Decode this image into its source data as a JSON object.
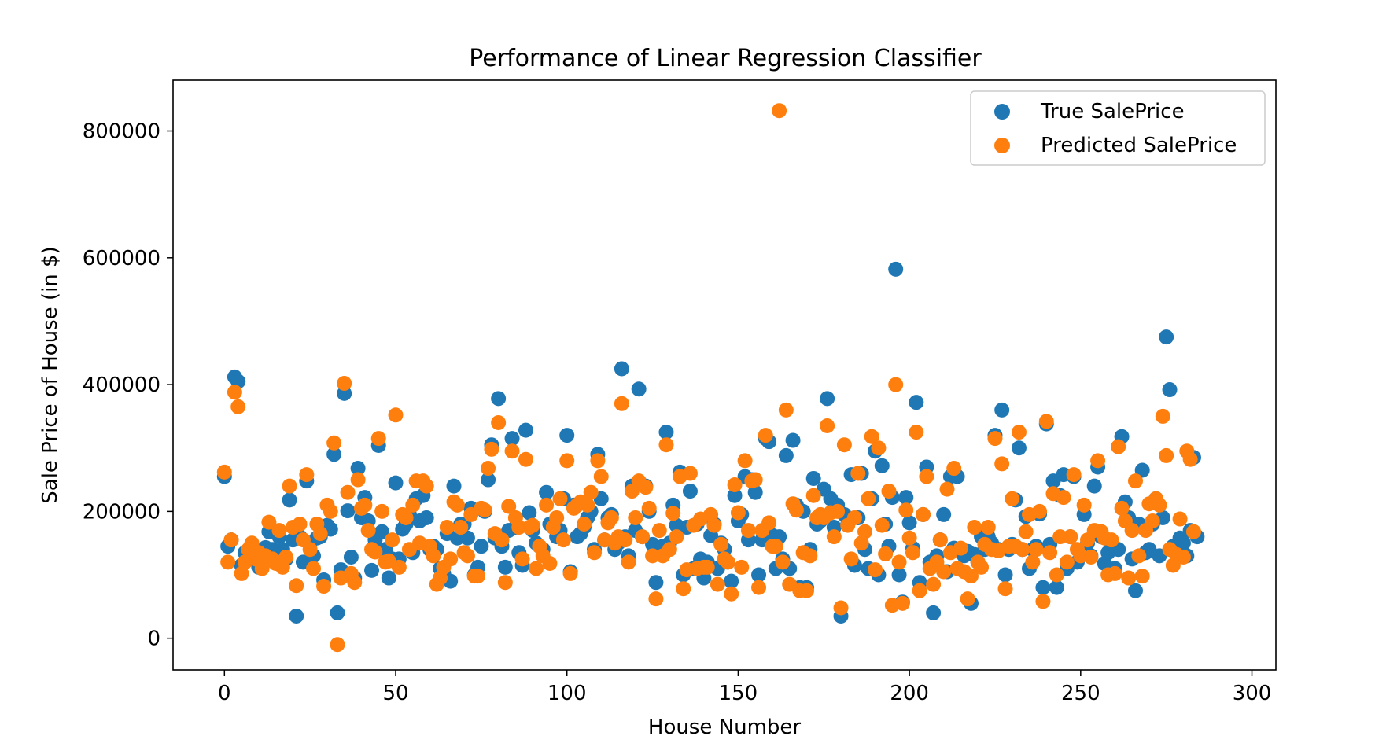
{
  "chart_data": {
    "type": "scatter",
    "title": "Performance of Linear Regression Classifier",
    "xlabel": "House Number",
    "ylabel": "Sale Price of House (in $)",
    "xlim": [
      -15,
      307
    ],
    "ylim": [
      -50000,
      880000
    ],
    "x_ticks": [
      0,
      50,
      100,
      150,
      200,
      250,
      300
    ],
    "y_ticks": [
      0,
      200000,
      400000,
      600000,
      800000
    ],
    "legend_position": "top-right",
    "series": [
      {
        "name": "True SalePrice",
        "color": "#1f77b4",
        "y": [
          255000,
          145000,
          155000,
          412000,
          405000,
          115000,
          135000,
          130000,
          140000,
          135000,
          112000,
          115000,
          143000,
          168000,
          140000,
          125000,
          160000,
          140000,
          125000,
          218000,
          155000,
          35000,
          160000,
          120000,
          248000,
          150000,
          130000,
          158000,
          160000,
          92000,
          178000,
          172000,
          290000,
          40000,
          108000,
          386000,
          201000,
          128000,
          95000,
          268000,
          190000,
          222000,
          185000,
          107000,
          155000,
          304000,
          168000,
          140000,
          95000,
          125000,
          245000,
          125000,
          172000,
          180000,
          195000,
          135000,
          220000,
          185000,
          225000,
          190000,
          140000,
          145000,
          140000,
          110000,
          102000,
          165000,
          90000,
          240000,
          158000,
          180000,
          180000,
          158000,
          205000,
          100000,
          112000,
          145000,
          200000,
          250000,
          305000,
          158000,
          378000,
          145000,
          112000,
          170000,
          315000,
          175000,
          135000,
          115000,
          328000,
          198000,
          170000,
          150000,
          145000,
          140000,
          230000,
          180000,
          175000,
          160000,
          170000,
          220000,
          320000,
          105000,
          210000,
          160000,
          165000,
          175000,
          190000,
          200000,
          140000,
          290000,
          220000,
          155000,
          190000,
          195000,
          140000,
          150000,
          425000,
          160000,
          130000,
          240000,
          170000,
          393000,
          160000,
          240000,
          200000,
          148000,
          88000,
          140000,
          145000,
          325000,
          150000,
          210000,
          178000,
          262000,
          100000,
          175000,
          232000,
          110000,
          180000,
          125000,
          95000,
          120000,
          162000,
          180000,
          110000,
          150000,
          140000,
          120000,
          90000,
          225000,
          185000,
          195000,
          255000,
          155000,
          250000,
          230000,
          100000,
          155000,
          315000,
          310000,
          162000,
          110000,
          160000,
          125000,
          288000,
          110000,
          312000,
          210000,
          80000,
          200000,
          80000,
          140000,
          252000,
          180000,
          185000,
          235000,
          378000,
          220000,
          175000,
          210000,
          35000,
          195000,
          180000,
          258000,
          115000,
          190000,
          260000,
          140000,
          110000,
          220000,
          295000,
          100000,
          272000,
          180000,
          145000,
          222000,
          582000,
          100000,
          57000,
          222000,
          182000,
          142000,
          372000,
          88000,
          195000,
          270000,
          120000,
          40000,
          130000,
          155000,
          195000,
          105000,
          255000,
          142000,
          255000,
          140000,
          130000,
          137000,
          55000,
          132000,
          120000,
          160000,
          140000,
          160000,
          150000,
          320000,
          140000,
          360000,
          100000,
          140000,
          148000,
          218000,
          300000,
          140000,
          192000,
          110000,
          140000,
          145000,
          196000,
          80000,
          338000,
          148000,
          248000,
          80000,
          225000,
          258000,
          110000,
          160000,
          255000,
          120000,
          135000,
          195000,
          150000,
          130000,
          240000,
          270000,
          160000,
          118000,
          135000,
          142000,
          110000,
          140000,
          318000,
          215000,
          190000,
          125000,
          75000,
          180000,
          265000,
          135000,
          140000,
          180000,
          220000,
          130000,
          190000,
          475000,
          392000,
          145000,
          132000,
          158000,
          150000,
          130000,
          170000,
          285000,
          160000
        ]
      },
      {
        "name": "Predicted SalePrice",
        "color": "#ff7f0e",
        "y": [
          262000,
          120000,
          155000,
          388000,
          365000,
          102000,
          120000,
          140000,
          150000,
          125000,
          135000,
          110000,
          130000,
          183000,
          125000,
          118000,
          170000,
          112000,
          128000,
          240000,
          175000,
          83000,
          180000,
          155000,
          258000,
          140000,
          110000,
          180000,
          165000,
          82000,
          210000,
          200000,
          308000,
          -10000,
          95000,
          402000,
          230000,
          102000,
          88000,
          250000,
          205000,
          210000,
          170000,
          140000,
          136000,
          315000,
          200000,
          120000,
          122000,
          155000,
          352000,
          112000,
          195000,
          190000,
          140000,
          210000,
          248000,
          150000,
          248000,
          240000,
          145000,
          130000,
          85000,
          95000,
          112000,
          175000,
          125000,
          215000,
          210000,
          175000,
          135000,
          130000,
          195000,
          98000,
          98000,
          205000,
          202000,
          268000,
          298000,
          165000,
          340000,
          155000,
          88000,
          208000,
          295000,
          190000,
          175000,
          125000,
          282000,
          175000,
          178000,
          110000,
          145000,
          130000,
          210000,
          118000,
          175000,
          190000,
          220000,
          155000,
          280000,
          102000,
          205000,
          210000,
          215000,
          180000,
          210000,
          230000,
          135000,
          280000,
          255000,
          155000,
          182000,
          190000,
          150000,
          160000,
          370000,
          155000,
          120000,
          232000,
          190000,
          248000,
          160000,
          238000,
          205000,
          130000,
          62000,
          170000,
          130000,
          305000,
          140000,
          197000,
          160000,
          255000,
          78000,
          108000,
          260000,
          178000,
          110000,
          188000,
          112000,
          112000,
          195000,
          178000,
          85000,
          148000,
          125000,
          120000,
          70000,
          242000,
          198000,
          112000,
          280000,
          170000,
          248000,
          250000,
          80000,
          170000,
          320000,
          182000,
          145000,
          145000,
          832000,
          120000,
          360000,
          85000,
          212000,
          202000,
          75000,
          135000,
          75000,
          130000,
          225000,
          190000,
          195000,
          190000,
          335000,
          198000,
          160000,
          200000,
          48000,
          305000,
          178000,
          125000,
          190000,
          260000,
          150000,
          168000,
          220000,
          318000,
          108000,
          300000,
          178000,
          133000,
          232000,
          52000,
          400000,
          120000,
          55000,
          202000,
          158000,
          135000,
          325000,
          75000,
          195000,
          255000,
          110000,
          85000,
          120000,
          155000,
          105000,
          235000,
          135000,
          268000,
          110000,
          142000,
          105000,
          62000,
          98000,
          175000,
          120000,
          112000,
          148000,
          175000,
          140000,
          315000,
          138000,
          275000,
          78000,
          145000,
          220000,
          145000,
          325000,
          140000,
          168000,
          195000,
          120000,
          140000,
          200000,
          58000,
          342000,
          135000,
          228000,
          100000,
          160000,
          222000,
          120000,
          160000,
          258000,
          140000,
          130000,
          210000,
          155000,
          128000,
          170000,
          280000,
          168000,
          158000,
          100000,
          155000,
          102000,
          302000,
          205000,
          185000,
          95000,
          170000,
          248000,
          130000,
          98000,
          170000,
          212000,
          185000,
          220000,
          210000,
          350000,
          288000,
          140000,
          115000,
          132000,
          188000,
          128000,
          295000,
          282000,
          168000
        ]
      }
    ]
  }
}
